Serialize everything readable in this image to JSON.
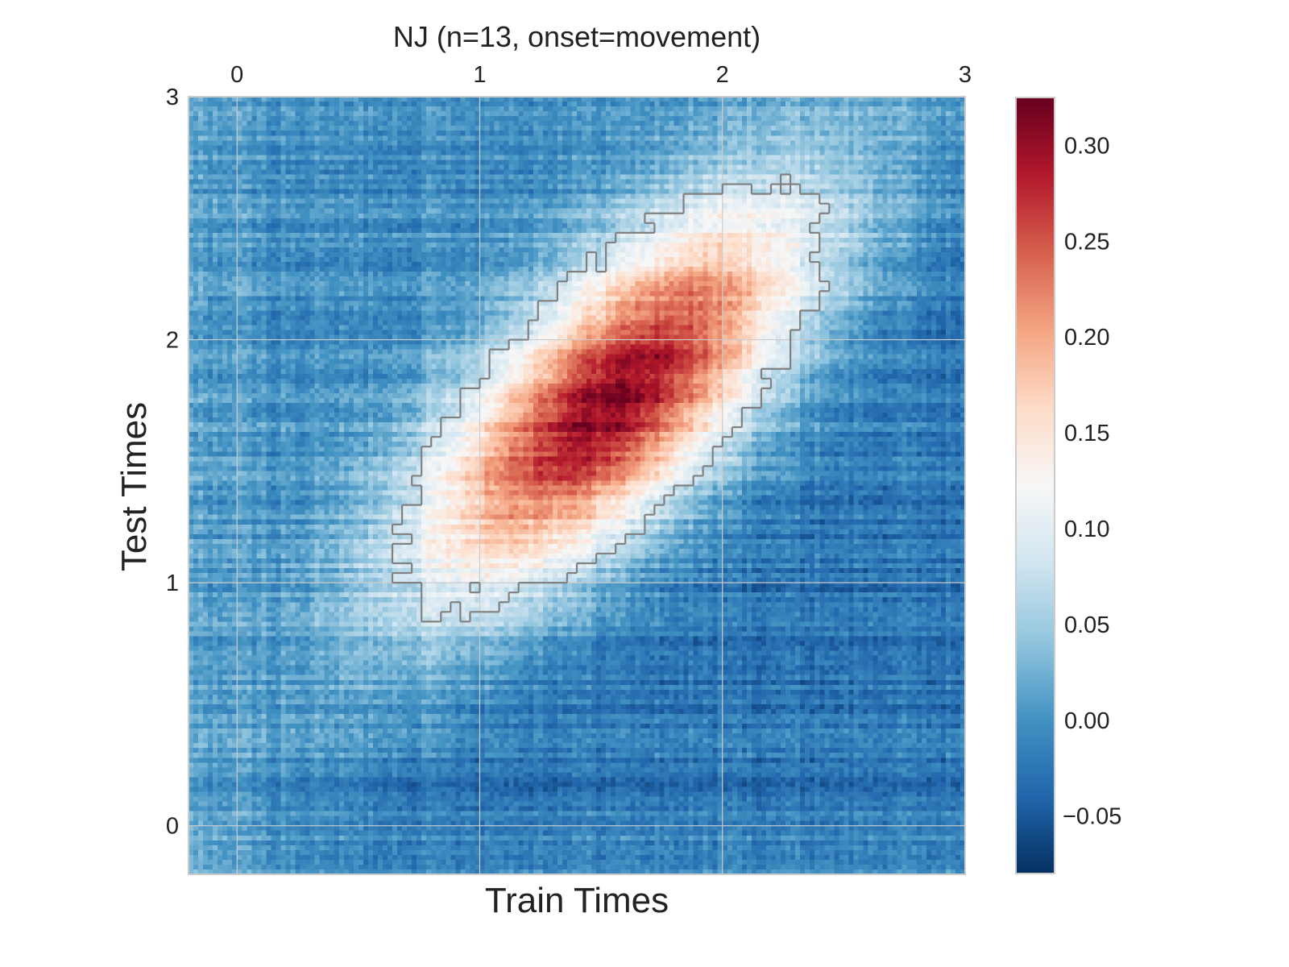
{
  "chart_data": {
    "type": "heatmap",
    "title": "NJ (n=13, onset=movement)",
    "xlabel": "Train Times",
    "ylabel": "Test Times",
    "xlim": [
      -0.2,
      3.0
    ],
    "ylim": [
      -0.2,
      3.0
    ],
    "x_ticks": [
      0,
      1,
      2,
      3
    ],
    "x_tick_labels": [
      "0",
      "1",
      "2",
      "3"
    ],
    "y_ticks": [
      0,
      1,
      2,
      3
    ],
    "y_tick_labels": [
      "0",
      "1",
      "2",
      "3"
    ],
    "x_axis_position": "top",
    "grid": true,
    "colormap": "RdBu_r",
    "colorbar": {
      "range": [
        -0.08,
        0.325
      ],
      "ticks": [
        -0.05,
        0.0,
        0.05,
        0.1,
        0.15,
        0.2,
        0.25,
        0.3
      ],
      "tick_labels": [
        "−0.05",
        "0.00",
        "0.05",
        "0.10",
        "0.15",
        "0.20",
        "0.25",
        "0.30"
      ],
      "colors": [
        "#053061",
        "#2166ac",
        "#4393c3",
        "#92c5de",
        "#d1e5f0",
        "#f7f7f7",
        "#fddbc7",
        "#f4a582",
        "#d6604d",
        "#b2182b",
        "#67001f"
      ]
    },
    "grid_size": 160,
    "peak": {
      "train": 1.55,
      "test": 1.75,
      "value": 0.31
    },
    "contour_level": 0.08,
    "contour_color": "#808080",
    "grid_color": "#cccccc",
    "frame_color": "#cccccc"
  }
}
